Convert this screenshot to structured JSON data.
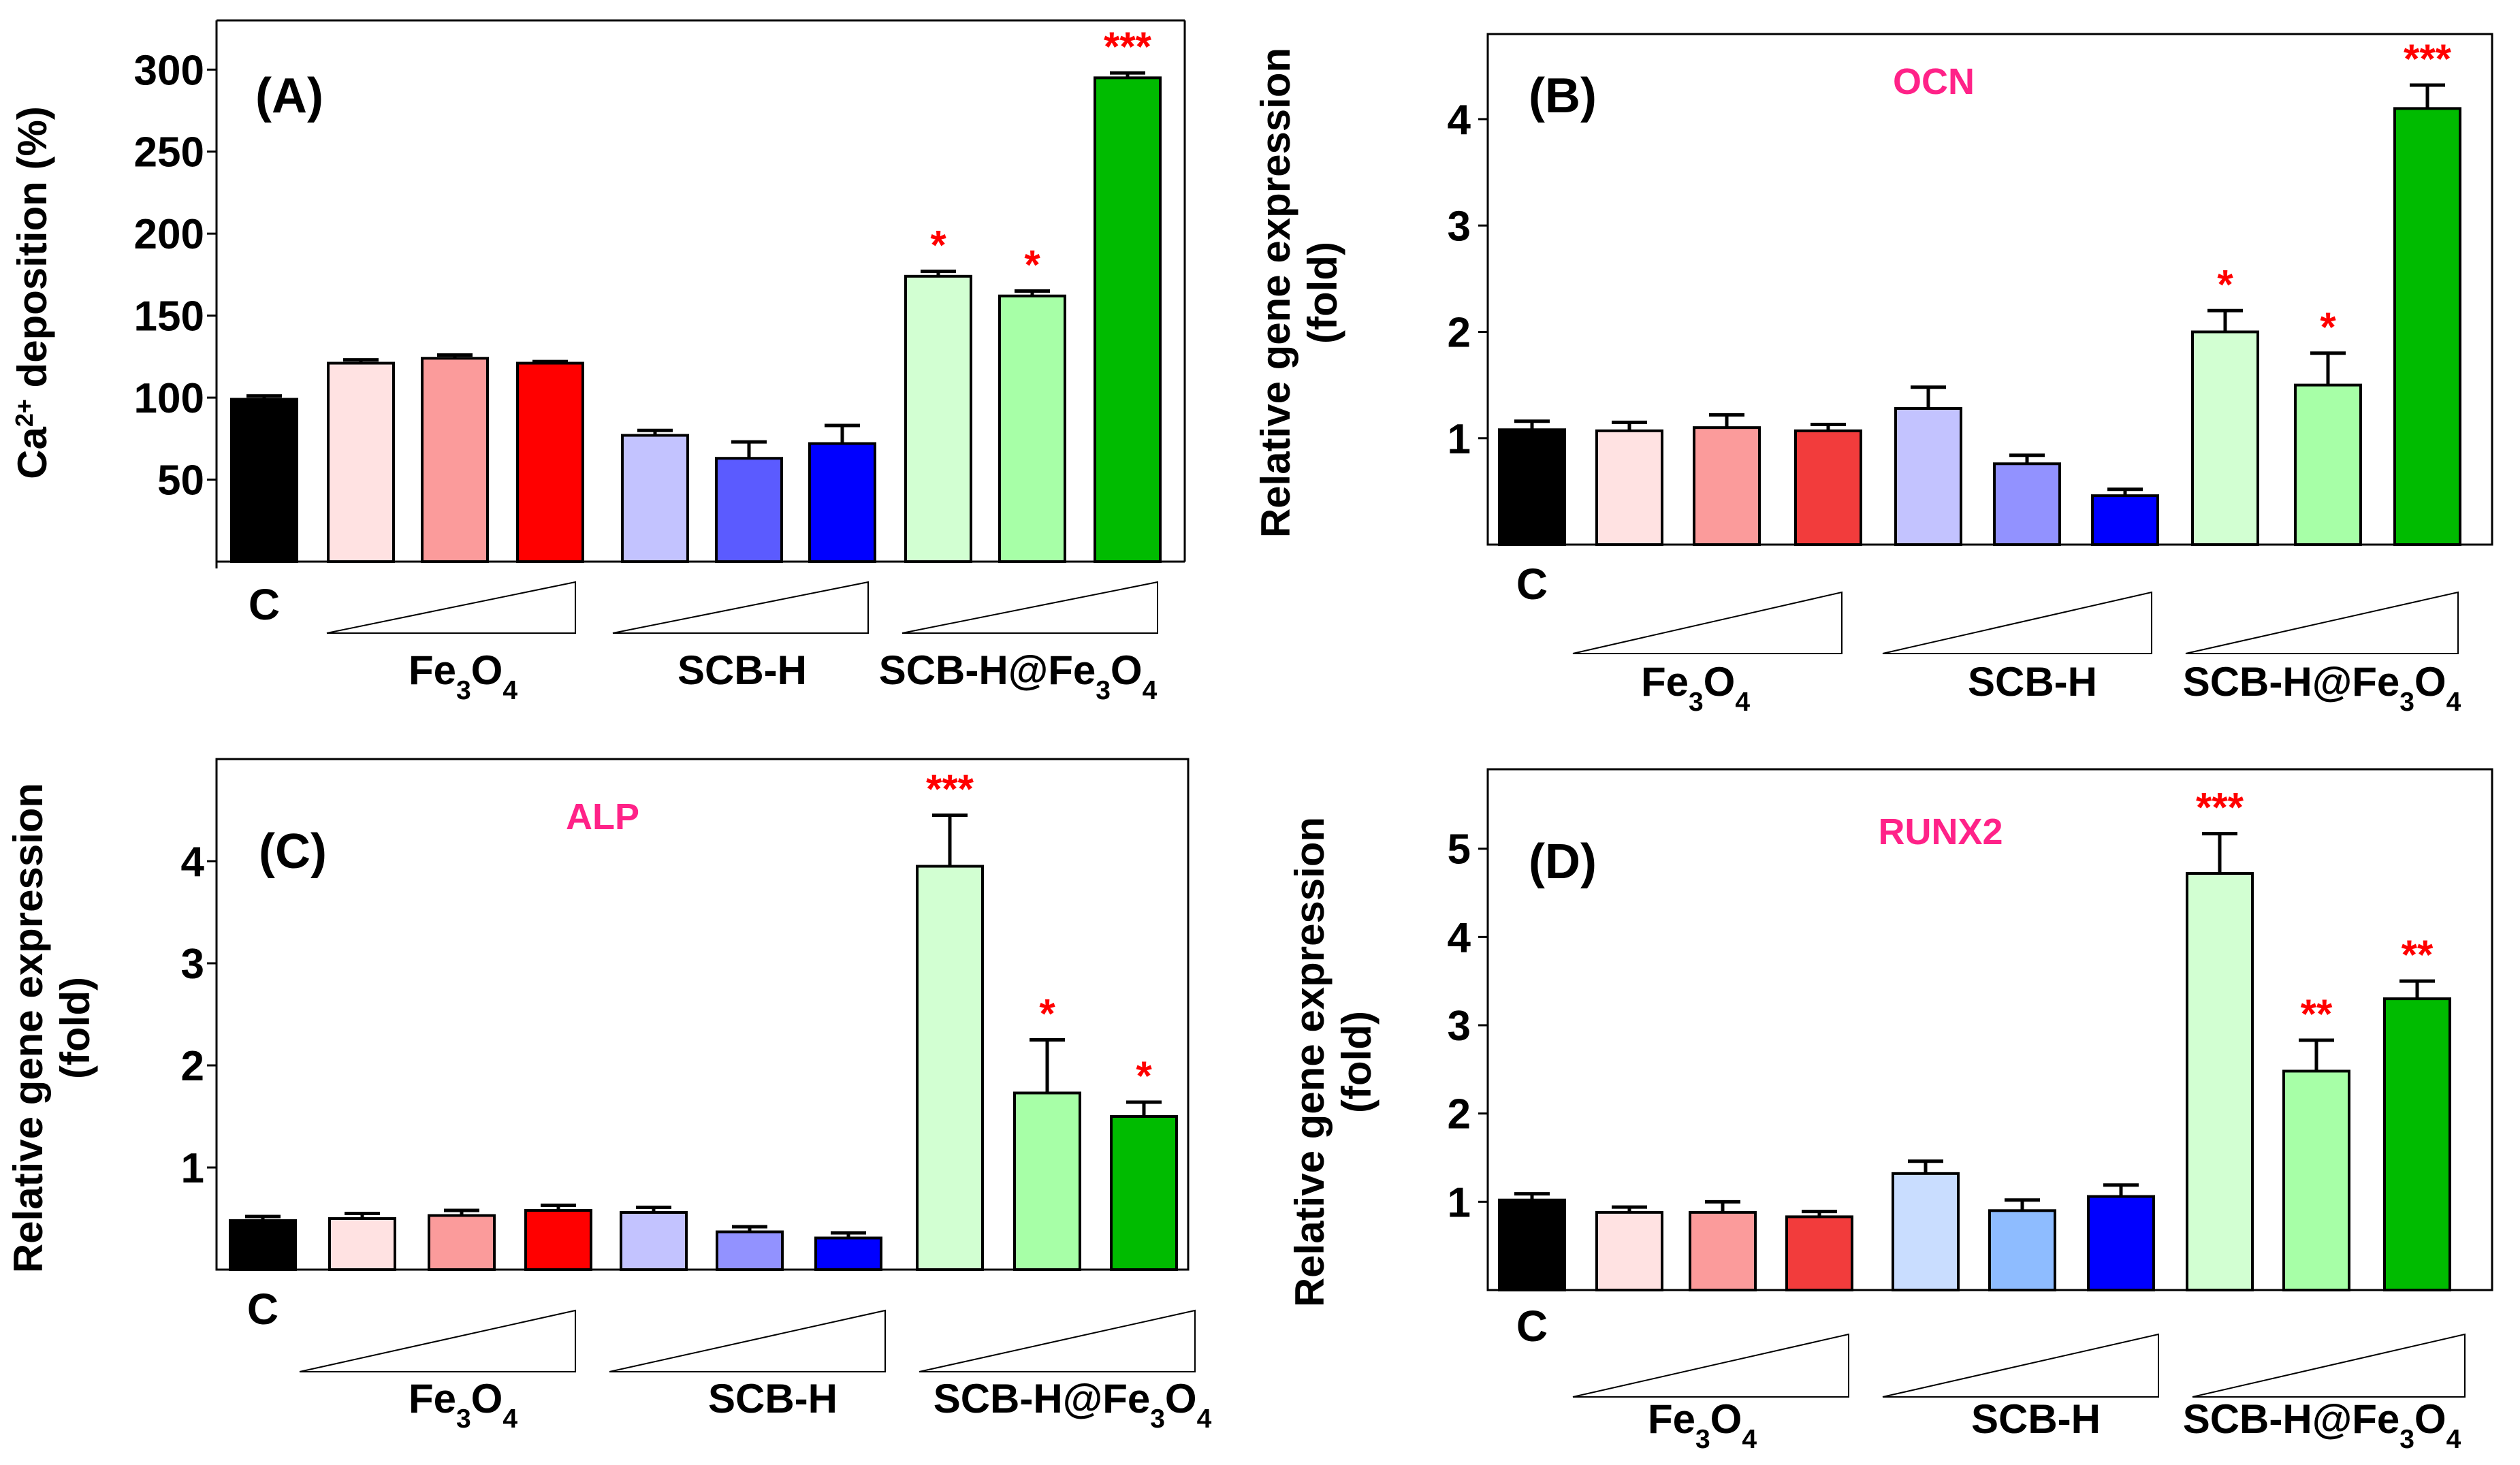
{
  "figure": {
    "panel_count": 4
  },
  "colors": {
    "control": "#000000",
    "fe_light": "#ffe2e2",
    "fe_mid": "#fb9b9b",
    "fe_dark": "#ff0000",
    "scb_light": "#c3c3ff",
    "scb_mid": "#5b5bff",
    "scb_dark": "#0000ff",
    "scbfe_light": "#d2ffd2",
    "scbfe_mid": "#a7ffa7",
    "scbfe_dark": "#00bb00",
    "sig": "#ff0000",
    "gene": "#ff2288"
  },
  "chart_data": [
    {
      "type": "bar",
      "panel": "(A)",
      "gene": "",
      "ylabel": "Ca2+ deposition (%)",
      "ylim": [
        0,
        330
      ],
      "yticks": [
        50,
        100,
        150,
        200,
        250,
        300
      ],
      "control_label": "C",
      "group_labels": [
        "Fe3O4",
        "SCB-H",
        "SCB-H@Fe3O4"
      ],
      "values": [
        99,
        121,
        124,
        121,
        77,
        63,
        72,
        174,
        162,
        295
      ],
      "errors": [
        2,
        2,
        2,
        1,
        3,
        10,
        11,
        3,
        3,
        3
      ],
      "significance": [
        "",
        "",
        "",
        "",
        "",
        "",
        "",
        "*",
        "*",
        "***"
      ],
      "bar_colors": [
        "#000000",
        "#ffe2e2",
        "#fb9b9b",
        "#ff0000",
        "#c3c3ff",
        "#5b5bff",
        "#0000ff",
        "#d2ffd2",
        "#a7ffa7",
        "#00bb00"
      ]
    },
    {
      "type": "bar",
      "panel": "(B)",
      "gene": "OCN",
      "ylabel": "Relative gene expression (fold)",
      "ylim": [
        0,
        4.8
      ],
      "yticks": [
        1,
        2,
        3,
        4
      ],
      "control_label": "C",
      "group_labels": [
        "Fe3O4",
        "SCB-H",
        "SCB-H@Fe3O4"
      ],
      "values": [
        1.08,
        1.07,
        1.1,
        1.07,
        1.28,
        0.76,
        0.46,
        2.0,
        1.5,
        4.1
      ],
      "errors": [
        0.08,
        0.08,
        0.12,
        0.06,
        0.2,
        0.08,
        0.06,
        0.2,
        0.3,
        0.22
      ],
      "significance": [
        "",
        "",
        "",
        "",
        "",
        "",
        "",
        "*",
        "*",
        "***"
      ],
      "bar_colors": [
        "#000000",
        "#ffe2e2",
        "#fb9b9b",
        "#f23c3c",
        "#c3c3ff",
        "#9292ff",
        "#0000ff",
        "#d2ffd2",
        "#a7ffa7",
        "#00bb00"
      ]
    },
    {
      "type": "bar",
      "panel": "(C)",
      "gene": "ALP",
      "ylabel": "Relative gene expression (fold)",
      "ylim": [
        0,
        5.0
      ],
      "yticks": [
        1,
        2,
        3,
        4
      ],
      "control_label": "C",
      "group_labels": [
        "Fe3O4",
        "SCB-H",
        "SCB-H@Fe3O4"
      ],
      "values": [
        0.48,
        0.5,
        0.53,
        0.58,
        0.56,
        0.37,
        0.31,
        3.95,
        1.73,
        1.5
      ],
      "errors": [
        0.04,
        0.05,
        0.05,
        0.05,
        0.05,
        0.05,
        0.05,
        0.5,
        0.52,
        0.14
      ],
      "significance": [
        "",
        "",
        "",
        "",
        "",
        "",
        "",
        "***",
        "*",
        "*"
      ],
      "bar_colors": [
        "#000000",
        "#ffe2e2",
        "#fb9b9b",
        "#ff0000",
        "#c3c3ff",
        "#9292ff",
        "#0000ff",
        "#d2ffd2",
        "#a7ffa7",
        "#00bb00"
      ]
    },
    {
      "type": "bar",
      "panel": "(D)",
      "gene": "RUNX2",
      "ylabel": "Relative gene expression (fold)",
      "ylim": [
        0,
        5.9
      ],
      "yticks": [
        1,
        2,
        3,
        4,
        5
      ],
      "control_label": "C",
      "group_labels": [
        "Fe3O4",
        "SCB-H",
        "SCB-H@Fe3O4"
      ],
      "values": [
        1.02,
        0.88,
        0.88,
        0.83,
        1.32,
        0.9,
        1.06,
        4.72,
        2.48,
        3.3
      ],
      "errors": [
        0.07,
        0.06,
        0.12,
        0.06,
        0.14,
        0.12,
        0.13,
        0.45,
        0.35,
        0.2
      ],
      "significance": [
        "",
        "",
        "",
        "",
        "",
        "",
        "",
        "***",
        "**",
        "**"
      ],
      "bar_colors": [
        "#000000",
        "#ffe2e2",
        "#fb9b9b",
        "#f23c3c",
        "#c9ddff",
        "#8ebcff",
        "#0000ff",
        "#d2ffd2",
        "#a7ffa7",
        "#00bb00"
      ]
    }
  ]
}
